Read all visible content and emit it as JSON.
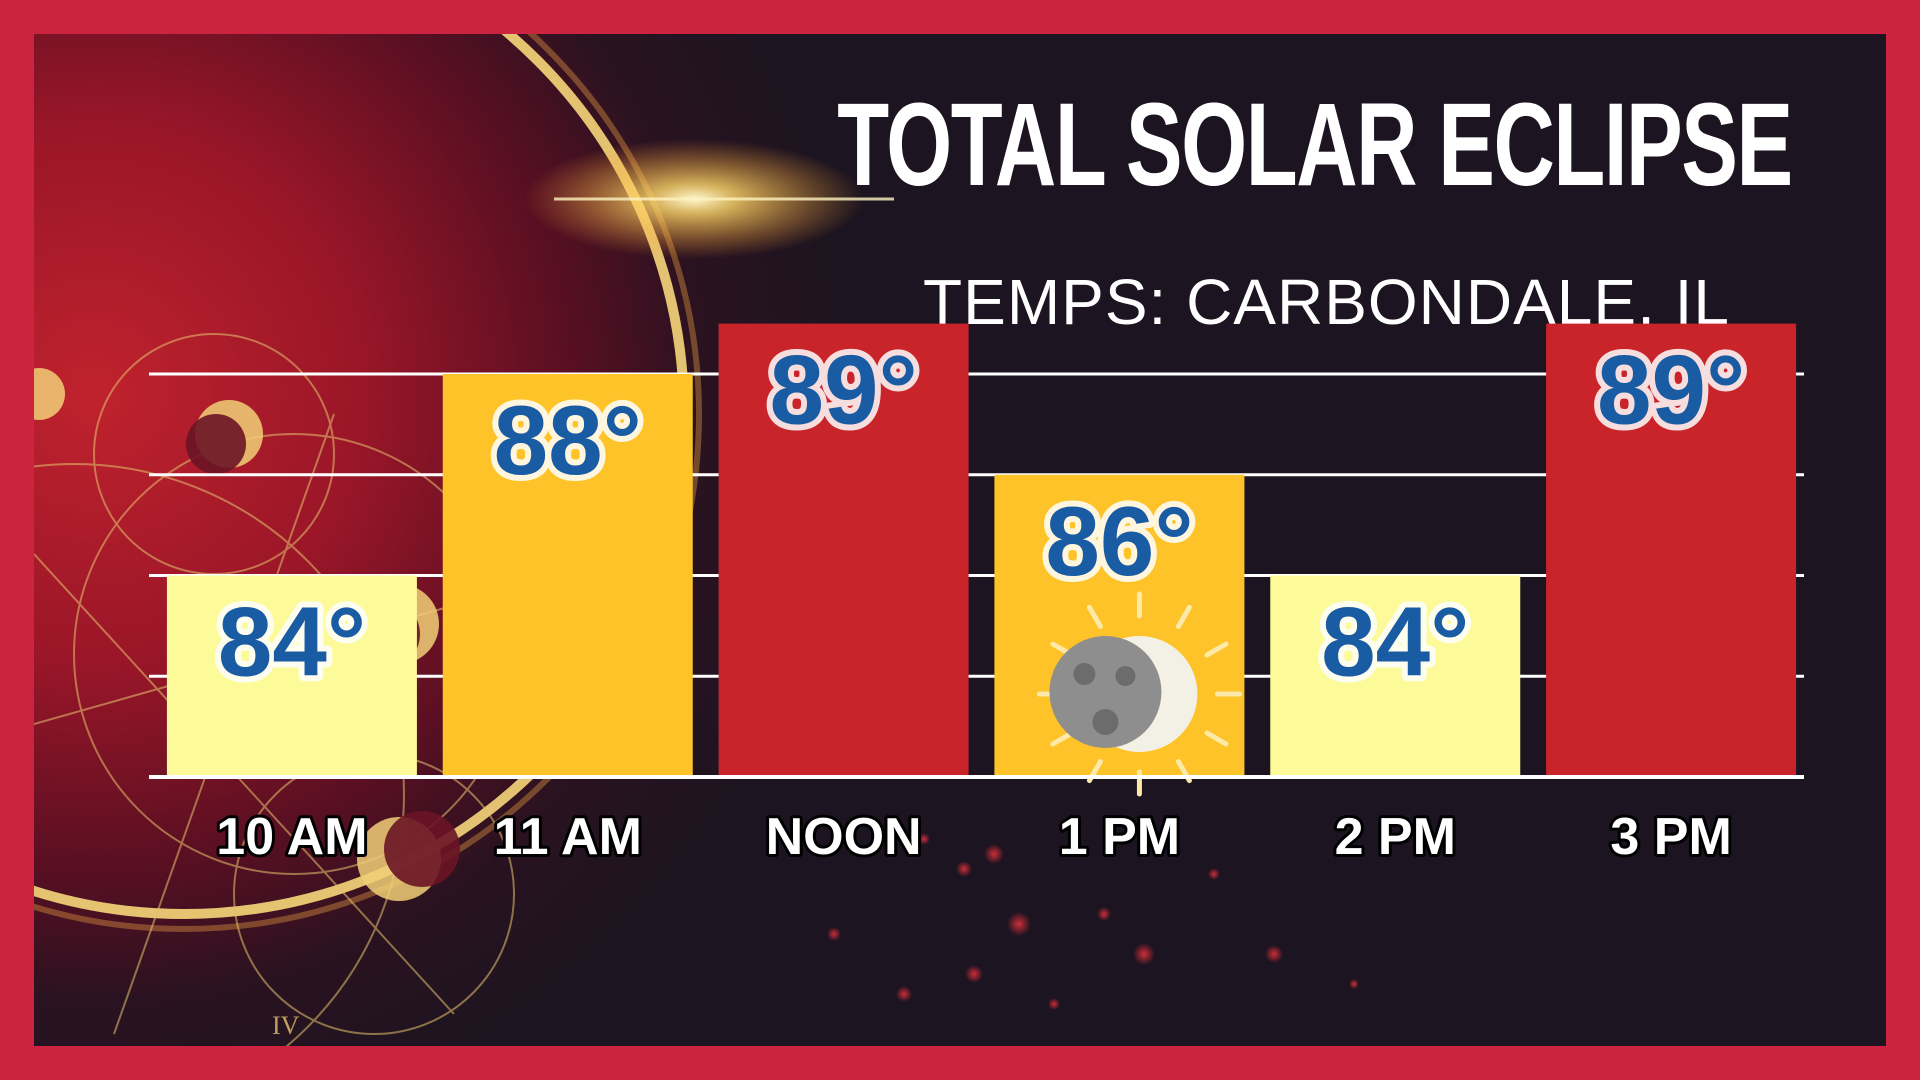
{
  "title": "TOTAL SOLAR ECLIPSE",
  "subtitle": "TEMPS: CARBONDALE, IL",
  "background_numeral": "IV",
  "colors": {
    "frame": "#cc2340",
    "light_yellow": "#fdfa9a",
    "gold": "#fdc329",
    "red": "#c8242a",
    "value_text": "#1a5ca3"
  },
  "icon": "eclipse-sun-icon",
  "chart_data": {
    "type": "bar",
    "categories": [
      "10 AM",
      "11 AM",
      "NOON",
      "1 PM",
      "2 PM",
      "3 PM"
    ],
    "values": [
      84,
      88,
      89,
      86,
      84,
      89
    ],
    "value_labels": [
      "84°",
      "88°",
      "89°",
      "86°",
      "84°",
      "89°"
    ],
    "bar_colors": [
      "#fdfa9a",
      "#fdc329",
      "#c8242a",
      "#fdc329",
      "#fdfa9a",
      "#c8242a"
    ],
    "title": "TOTAL SOLAR ECLIPSE",
    "subtitle": "TEMPS: CARBONDALE, IL",
    "ylim": [
      80,
      88
    ],
    "grid": true,
    "gridlines": [
      82,
      84,
      86,
      88
    ]
  }
}
